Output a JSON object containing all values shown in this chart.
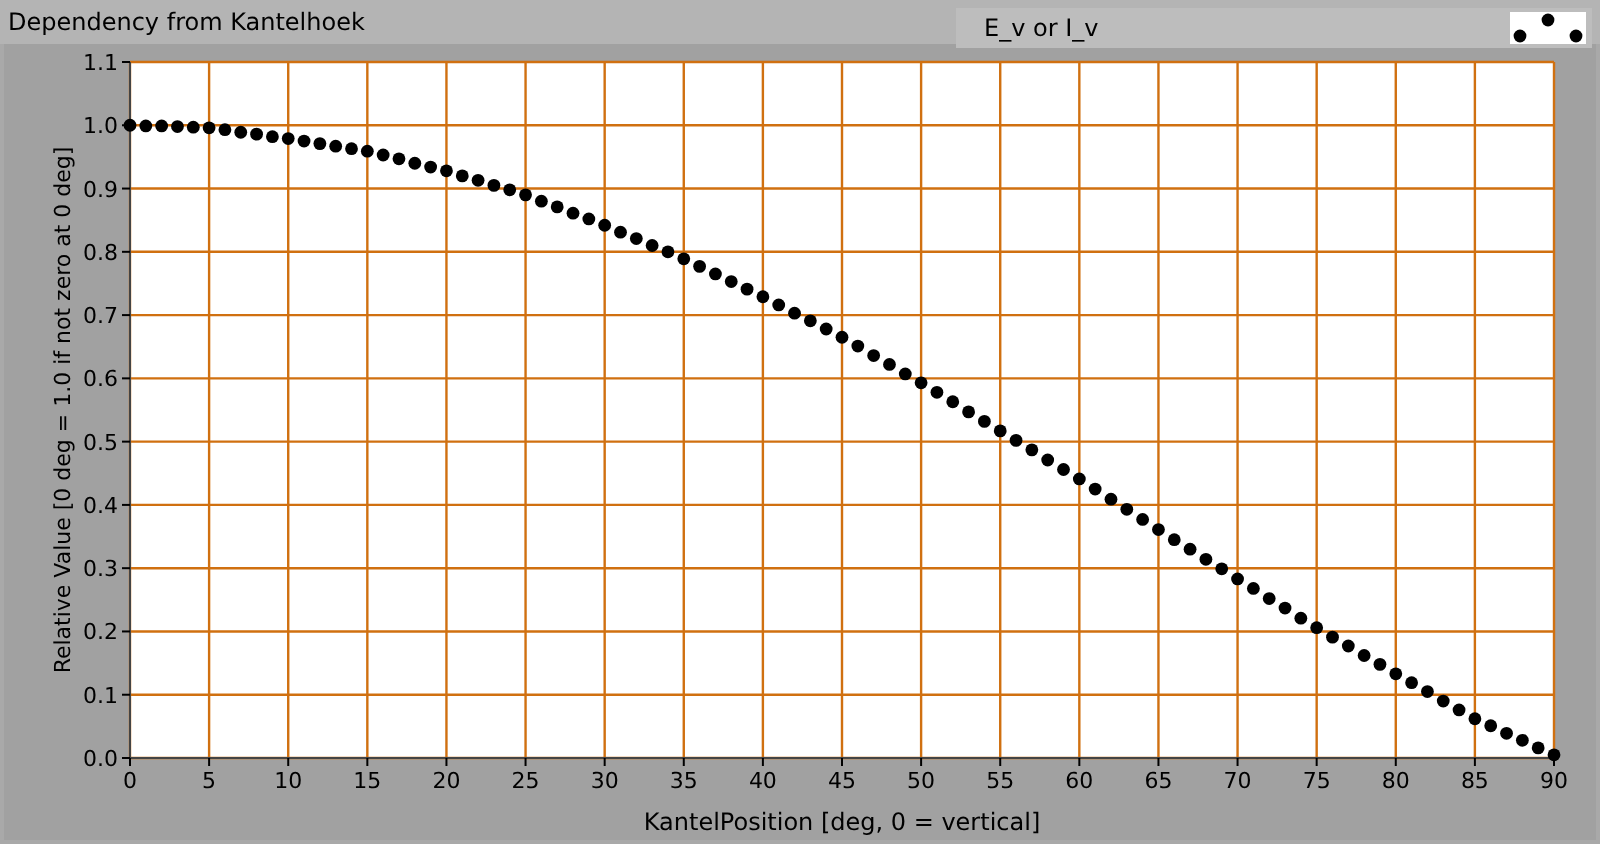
{
  "chart_data": {
    "type": "scatter",
    "title": "Dependency from Kantelhoek",
    "xlabel": "KantelPosition [deg, 0 = vertical]",
    "ylabel": "Relative Value [0 deg = 1.0 if not zero at 0 deg]",
    "x": [
      0,
      1,
      2,
      3,
      4,
      5,
      6,
      7,
      8,
      9,
      10,
      11,
      12,
      13,
      14,
      15,
      16,
      17,
      18,
      19,
      20,
      21,
      22,
      23,
      24,
      25,
      26,
      27,
      28,
      29,
      30,
      31,
      32,
      33,
      34,
      35,
      36,
      37,
      38,
      39,
      40,
      41,
      42,
      43,
      44,
      45,
      46,
      47,
      48,
      49,
      50,
      51,
      52,
      53,
      54,
      55,
      56,
      57,
      58,
      59,
      60,
      61,
      62,
      63,
      64,
      65,
      66,
      67,
      68,
      69,
      70,
      71,
      72,
      73,
      74,
      75,
      76,
      77,
      78,
      79,
      80,
      81,
      82,
      83,
      84,
      85,
      86,
      87,
      88,
      89,
      90
    ],
    "series": [
      {
        "name": "E_v or I_v",
        "color": "#000000",
        "values": [
          1.0,
          0.999,
          0.999,
          0.998,
          0.997,
          0.996,
          0.993,
          0.989,
          0.986,
          0.982,
          0.979,
          0.975,
          0.971,
          0.967,
          0.963,
          0.959,
          0.953,
          0.947,
          0.94,
          0.934,
          0.928,
          0.92,
          0.913,
          0.905,
          0.898,
          0.89,
          0.88,
          0.871,
          0.861,
          0.852,
          0.842,
          0.831,
          0.821,
          0.81,
          0.8,
          0.789,
          0.777,
          0.765,
          0.753,
          0.741,
          0.729,
          0.716,
          0.703,
          0.691,
          0.678,
          0.665,
          0.651,
          0.636,
          0.622,
          0.607,
          0.593,
          0.578,
          0.563,
          0.547,
          0.532,
          0.517,
          0.502,
          0.487,
          0.471,
          0.456,
          0.441,
          0.425,
          0.409,
          0.393,
          0.377,
          0.361,
          0.345,
          0.33,
          0.314,
          0.299,
          0.283,
          0.268,
          0.252,
          0.237,
          0.221,
          0.206,
          0.191,
          0.177,
          0.162,
          0.148,
          0.133,
          0.119,
          0.105,
          0.09,
          0.076,
          0.062,
          0.051,
          0.039,
          0.028,
          0.016,
          0.005
        ]
      }
    ],
    "xlim": [
      0,
      90
    ],
    "xticks": [
      0,
      5,
      10,
      15,
      20,
      25,
      30,
      35,
      40,
      45,
      50,
      55,
      60,
      65,
      70,
      75,
      80,
      85,
      90
    ],
    "ylim": [
      0,
      1.1
    ],
    "yticks": [
      {
        "value": 0,
        "label": "0.0"
      },
      0.1,
      0.2,
      0.3,
      0.4,
      0.5,
      0.6,
      0.7,
      0.8,
      0.9,
      {
        "value": 1,
        "label": "1.0"
      },
      1.1
    ],
    "grid": true,
    "legend": "top right",
    "marker": "circle"
  }
}
